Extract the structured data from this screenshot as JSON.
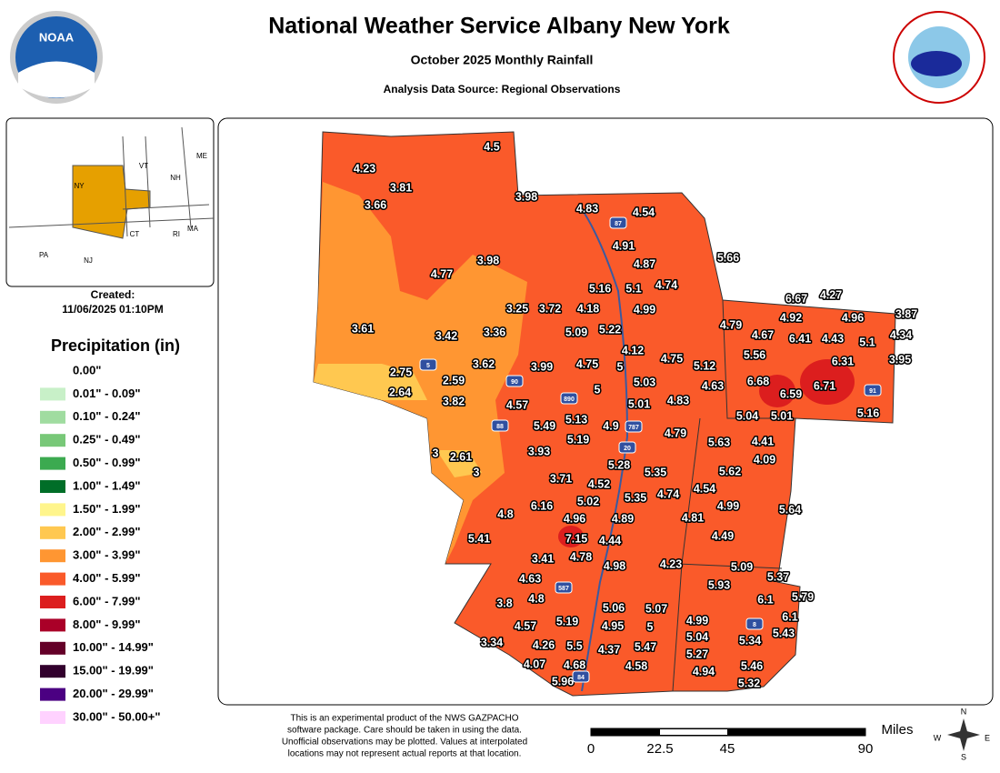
{
  "header": {
    "title": "National Weather Service Albany New York",
    "subtitle": "October 2025 Monthly Rainfall",
    "source": "Analysis Data Source: Regional Observations",
    "noaa": "NOAA"
  },
  "created": {
    "label": "Created:",
    "date": "11/06/2025 01:10PM"
  },
  "inset_labels": [
    "VT",
    "NH",
    "ME",
    "NY",
    "MA",
    "CT",
    "RI",
    "PA",
    "NJ"
  ],
  "legend": {
    "title": "Precipitation (in)",
    "items": [
      {
        "label": "0.00\"",
        "color": null
      },
      {
        "label": "0.01\" - 0.09\"",
        "color": "#c8f0c8"
      },
      {
        "label": "0.10\" - 0.24\"",
        "color": "#a0dca0"
      },
      {
        "label": "0.25\" - 0.49\"",
        "color": "#78c878"
      },
      {
        "label": "0.50\" - 0.99\"",
        "color": "#3caa50"
      },
      {
        "label": "1.00\" - 1.49\"",
        "color": "#006e28"
      },
      {
        "label": "1.50\" - 1.99\"",
        "color": "#fff58c"
      },
      {
        "label": "2.00\" - 2.99\"",
        "color": "#ffc850"
      },
      {
        "label": "3.00\" - 3.99\"",
        "color": "#ff9632"
      },
      {
        "label": "4.00\" - 5.99\"",
        "color": "#fa5a2a"
      },
      {
        "label": "6.00\" - 7.99\"",
        "color": "#dc1e1e"
      },
      {
        "label": "8.00\" - 9.99\"",
        "color": "#aa0028"
      },
      {
        "label": "10.00\" - 14.99\"",
        "color": "#640028"
      },
      {
        "label": "15.00\" - 19.99\"",
        "color": "#32002d"
      },
      {
        "label": "20.00\" - 29.99\"",
        "color": "#4b0082"
      },
      {
        "label": "30.00\" - 50.00+\"",
        "color": "#ffd2ff"
      }
    ]
  },
  "stations": [
    4.5,
    4.23,
    3.81,
    3.98,
    3.66,
    4.83,
    4.54,
    4.91,
    5.66,
    3.98,
    4.87,
    4.77,
    4.74,
    5.16,
    5.1,
    6.67,
    4.27,
    3.25,
    3.72,
    4.18,
    4.99,
    3.87,
    4.92,
    4.96,
    5.09,
    5.22,
    3.61,
    3.42,
    3.36,
    4.79,
    4.67,
    6.41,
    4.43,
    5.1,
    4.34,
    4.12,
    5.56,
    6.31,
    3.95,
    3.62,
    3.99,
    4.75,
    5,
    4.75,
    5.12,
    2.75,
    2.59,
    5.03,
    6.68,
    4.63,
    6.71,
    2.64,
    3.82,
    5,
    6.59,
    4.57,
    5.01,
    4.83,
    5.04,
    5.01,
    5.16,
    5.13,
    4.9,
    5.49,
    4.79,
    5.19,
    5.63,
    4.41,
    3,
    2.61,
    3.93,
    4.09,
    5.28,
    3,
    5.62,
    5.35,
    3.71,
    4.52,
    4.74,
    4.54,
    5.02,
    5.35,
    6.16,
    4.8,
    4.96,
    4.99,
    5.64,
    4.89,
    4.81,
    5.41,
    7.15,
    4.44,
    4.49,
    3.41,
    4.78,
    4.98,
    4.23,
    5.09,
    5.37,
    4.63,
    5.93,
    4.8,
    5.79,
    6.1,
    3.8,
    5.06,
    5.07,
    6.1,
    5.19,
    4.95,
    5,
    4.99,
    4.57,
    5.43,
    3.34,
    4.26,
    5.5,
    4.37,
    5.47,
    5.04,
    5.34,
    5.27,
    4.07,
    4.68,
    4.58,
    5.46,
    4.94,
    5.96,
    5.32
  ],
  "shields": [
    "87",
    "5",
    "90",
    "890",
    "88",
    "787",
    "20",
    "587",
    "91",
    "8",
    "84"
  ],
  "disclaimer": [
    "This is an experimental product of the NWS GAZPACHO",
    "software package. Care should be taken in using the data.",
    "Unofficial observations may be plotted. Values at interpolated",
    "locations may not represent actual reports at that location."
  ],
  "scale": {
    "unit": "Miles",
    "labels": [
      "0",
      "22.5",
      "45",
      "90"
    ]
  },
  "compass": [
    "N",
    "S",
    "E",
    "W"
  ]
}
